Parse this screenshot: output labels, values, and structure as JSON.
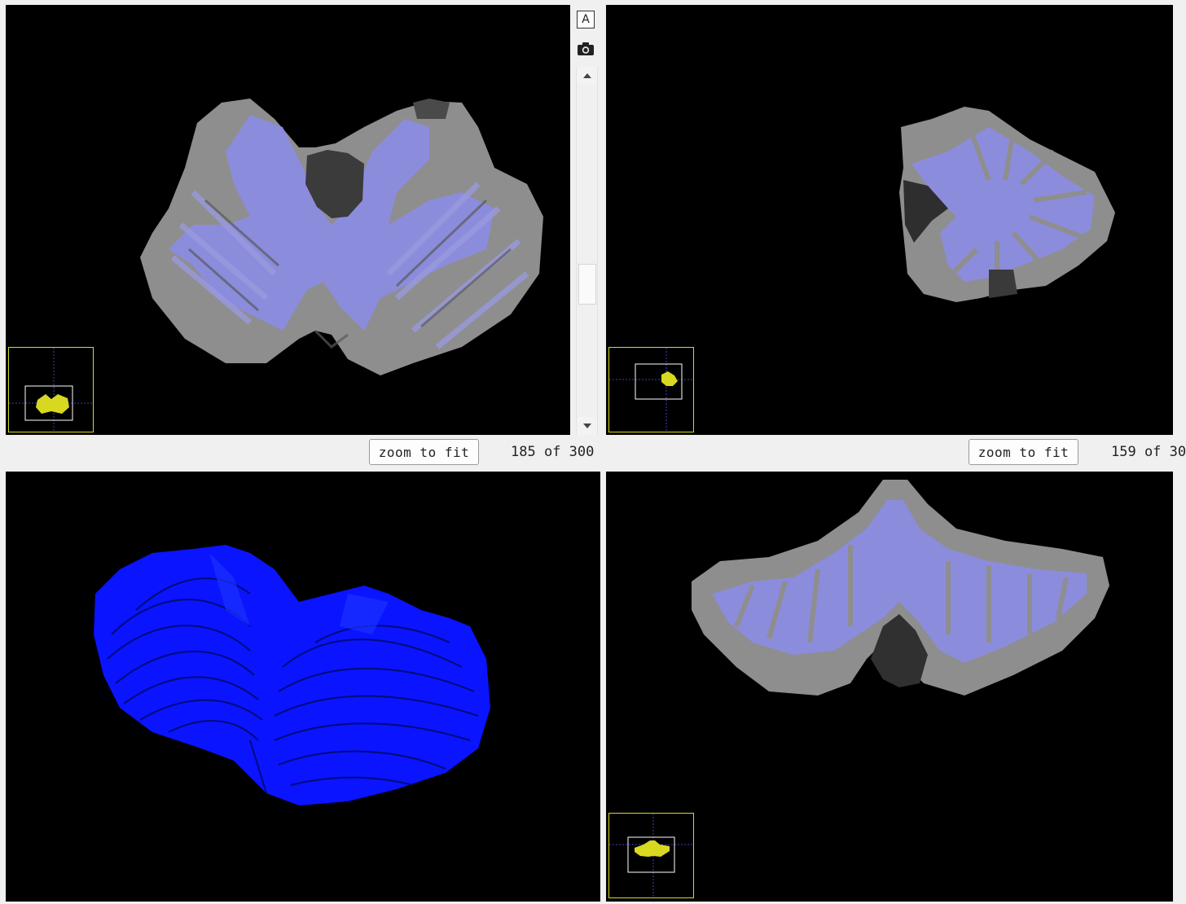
{
  "toolbar": {
    "annotation_button": "A",
    "camera_icon": "camera-icon"
  },
  "views": {
    "axial": {
      "zoom_label": "zoom to fit",
      "slice_text": "185 of 300"
    },
    "sagittal": {
      "zoom_label": "zoom to fit",
      "slice_text": "159 of 30"
    },
    "render3d": {},
    "coronal": {}
  },
  "colors": {
    "background": "#000000",
    "overlay": "#8c8ce6",
    "surface": "#0a14ff",
    "thumbnail_border": "#d8d820"
  }
}
